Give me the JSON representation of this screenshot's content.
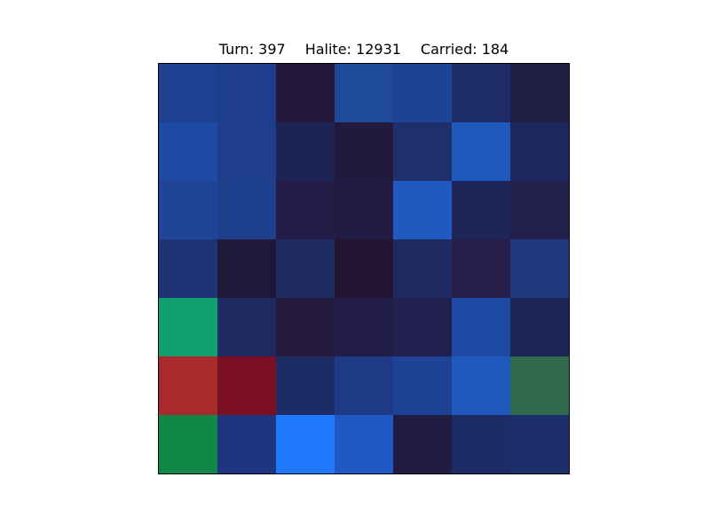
{
  "status": {
    "turn_label": "Turn: 397",
    "halite_label": "Halite: 12931",
    "carried_label": "Carried: 184"
  },
  "board": {
    "rows": 7,
    "cols": 7,
    "cells": [
      [
        "#1e4090",
        "#1e3d8a",
        "#21183a",
        "#1f4a9a",
        "#1e4294",
        "#1f2d66",
        "#221f44"
      ],
      [
        "#1f4aa4",
        "#1e3d8a",
        "#1e2356",
        "#221a3e",
        "#1e2f6c",
        "#2059be",
        "#1e2860"
      ],
      [
        "#1f4498",
        "#1e3f8c",
        "#221c46",
        "#221c44",
        "#2059c0",
        "#1e2559",
        "#221f48"
      ],
      [
        "#1e3474",
        "#20183a",
        "#1e2b62",
        "#241532",
        "#1e2a62",
        "#241e48",
        "#1f3a80"
      ],
      [
        "#12a06e",
        "#1e2a62",
        "#231a3e",
        "#221e48",
        "#21204e",
        "#1f4aa4",
        "#1e2558"
      ],
      [
        "#aa2a2c",
        "#7c0e24",
        "#1e2c66",
        "#1f3a86",
        "#1e4294",
        "#2059be",
        "#306a4e"
      ],
      [
        "#128848",
        "#1e3680",
        "#2078ff",
        "#2059c4",
        "#221c44",
        "#1e2c66",
        "#1e2e6a"
      ]
    ]
  }
}
